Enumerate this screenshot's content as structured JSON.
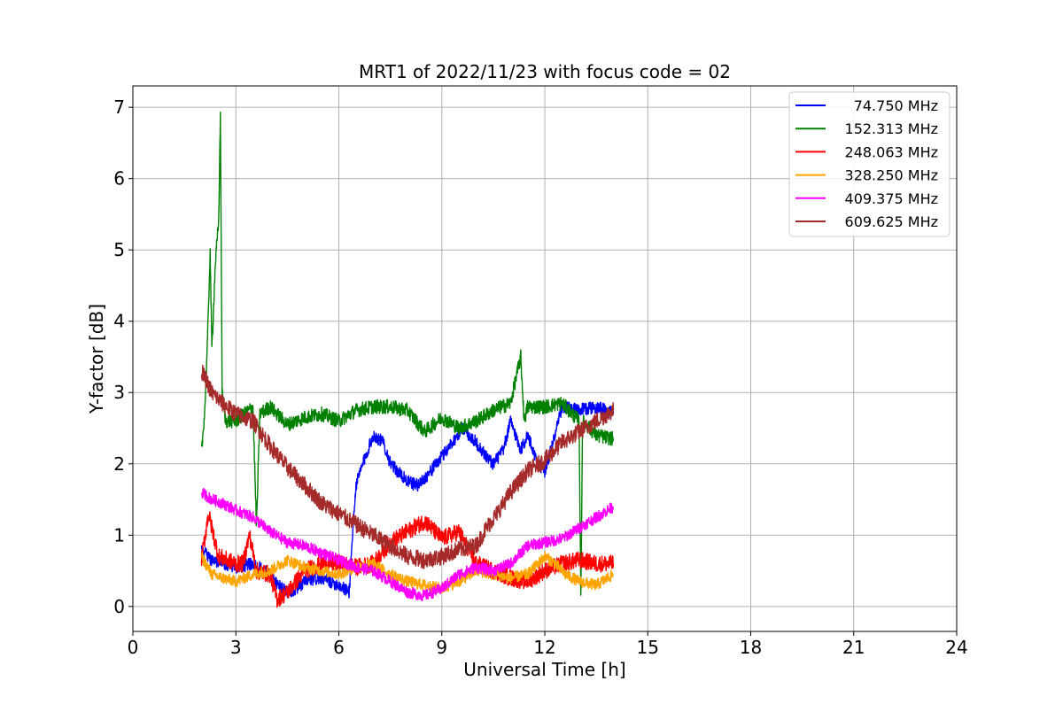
{
  "chart_data": {
    "type": "line",
    "title": "MRT1 of 2022/11/23 with focus code = 02",
    "xlabel": "Universal Time [h]",
    "ylabel": "Y-factor [dB]",
    "xlim": [
      0,
      24
    ],
    "ylim": [
      -0.35,
      7.3
    ],
    "xticks": [
      0,
      3,
      6,
      9,
      12,
      15,
      18,
      21,
      24
    ],
    "xtick_labels": [
      "0",
      "3",
      "6",
      "9",
      "12",
      "15",
      "18",
      "21",
      "24"
    ],
    "yticks": [
      0,
      1,
      2,
      3,
      4,
      5,
      6,
      7
    ],
    "ytick_labels": [
      "0",
      "1",
      "2",
      "3",
      "4",
      "5",
      "6",
      "7"
    ],
    "grid": true,
    "legend_position": "top-right",
    "series": [
      {
        "name": "74.750 MHz",
        "color": "#0000ff",
        "noise": 0.09,
        "x": [
          2.0,
          2.3,
          2.7,
          3.0,
          3.5,
          4.0,
          4.2,
          4.5,
          4.8,
          5.0,
          5.5,
          6.0,
          6.3,
          6.4,
          6.5,
          6.7,
          7.0,
          7.3,
          7.5,
          7.7,
          8.0,
          8.3,
          8.6,
          9.0,
          9.3,
          9.6,
          10.0,
          10.3,
          10.5,
          10.8,
          11.0,
          11.3,
          11.5,
          11.8,
          12.0,
          12.3,
          12.5,
          13.0,
          13.5,
          14.0
        ],
        "y": [
          0.8,
          0.65,
          0.6,
          0.55,
          0.6,
          0.45,
          0.3,
          0.2,
          0.25,
          0.35,
          0.4,
          0.3,
          0.2,
          1.0,
          1.7,
          2.0,
          2.4,
          2.3,
          2.0,
          1.9,
          1.75,
          1.7,
          1.85,
          2.1,
          2.3,
          2.5,
          2.3,
          2.1,
          2.0,
          2.2,
          2.6,
          2.2,
          2.4,
          2.0,
          1.9,
          2.4,
          2.8,
          2.75,
          2.8,
          2.7
        ]
      },
      {
        "name": "152.313 MHz",
        "color": "#008000",
        "noise": 0.1,
        "x": [
          2.0,
          2.1,
          2.2,
          2.25,
          2.3,
          2.4,
          2.5,
          2.55,
          2.6,
          2.7,
          3.0,
          3.5,
          3.6,
          3.7,
          4.0,
          4.5,
          5.0,
          5.5,
          6.0,
          6.5,
          7.0,
          7.5,
          8.0,
          8.5,
          9.0,
          9.5,
          10.0,
          10.5,
          11.0,
          11.3,
          11.4,
          11.5,
          12.0,
          12.5,
          13.0,
          13.05,
          13.1,
          13.5,
          14.0
        ],
        "y": [
          2.15,
          2.8,
          4.1,
          5.0,
          3.6,
          4.8,
          5.4,
          6.9,
          3.0,
          2.6,
          2.6,
          2.8,
          1.1,
          2.7,
          2.8,
          2.55,
          2.65,
          2.7,
          2.6,
          2.75,
          2.8,
          2.8,
          2.75,
          2.45,
          2.65,
          2.5,
          2.6,
          2.75,
          2.85,
          3.5,
          2.6,
          2.8,
          2.8,
          2.85,
          2.6,
          0.1,
          2.6,
          2.4,
          2.35
        ]
      },
      {
        "name": "248.063 MHz",
        "color": "#ff0000",
        "noise": 0.12,
        "x": [
          2.0,
          2.2,
          2.5,
          3.0,
          3.2,
          3.4,
          3.6,
          4.0,
          4.2,
          4.5,
          5.0,
          5.5,
          6.0,
          6.5,
          7.0,
          7.5,
          8.0,
          8.5,
          9.0,
          9.5,
          10.0,
          10.5,
          11.0,
          11.5,
          12.0,
          12.5,
          13.0,
          13.5,
          14.0
        ],
        "y": [
          0.65,
          1.3,
          0.7,
          0.6,
          0.6,
          1.0,
          0.5,
          0.45,
          0.1,
          0.2,
          0.5,
          0.6,
          0.6,
          0.55,
          0.6,
          0.9,
          1.05,
          1.2,
          0.95,
          1.05,
          0.6,
          0.5,
          0.4,
          0.35,
          0.5,
          0.6,
          0.65,
          0.6,
          0.6
        ]
      },
      {
        "name": "328.250 MHz",
        "color": "#ffa500",
        "noise": 0.08,
        "x": [
          2.0,
          2.3,
          2.6,
          3.0,
          3.5,
          4.0,
          4.5,
          5.0,
          5.5,
          6.0,
          6.5,
          7.0,
          7.5,
          8.0,
          8.5,
          9.0,
          9.5,
          10.0,
          10.5,
          11.0,
          11.5,
          12.0,
          12.3,
          12.6,
          13.0,
          13.5,
          14.0
        ],
        "y": [
          0.7,
          0.45,
          0.4,
          0.35,
          0.45,
          0.5,
          0.65,
          0.55,
          0.5,
          0.45,
          0.55,
          0.6,
          0.45,
          0.35,
          0.3,
          0.25,
          0.35,
          0.5,
          0.45,
          0.4,
          0.45,
          0.7,
          0.6,
          0.45,
          0.35,
          0.3,
          0.45
        ]
      },
      {
        "name": "409.375 MHz",
        "color": "#ff00ff",
        "noise": 0.08,
        "x": [
          2.0,
          2.3,
          2.6,
          3.0,
          3.5,
          4.0,
          4.5,
          5.0,
          5.5,
          6.0,
          6.5,
          7.0,
          7.5,
          8.0,
          8.5,
          9.0,
          9.5,
          10.0,
          10.5,
          11.0,
          11.5,
          12.0,
          12.5,
          13.0,
          13.5,
          14.0
        ],
        "y": [
          1.6,
          1.5,
          1.45,
          1.35,
          1.25,
          1.05,
          0.9,
          0.85,
          0.75,
          0.65,
          0.55,
          0.5,
          0.35,
          0.2,
          0.15,
          0.25,
          0.45,
          0.55,
          0.5,
          0.6,
          0.85,
          0.9,
          0.95,
          1.1,
          1.25,
          1.4
        ]
      },
      {
        "name": "609.625 MHz",
        "color": "#a52a2a",
        "noise": 0.12,
        "x": [
          2.0,
          2.3,
          2.6,
          3.0,
          3.5,
          4.0,
          4.5,
          5.0,
          5.5,
          6.0,
          6.5,
          7.0,
          7.5,
          8.0,
          8.5,
          9.0,
          9.5,
          10.0,
          10.3,
          10.6,
          11.0,
          11.5,
          12.0,
          12.5,
          13.0,
          13.5,
          14.0
        ],
        "y": [
          3.3,
          3.0,
          2.85,
          2.7,
          2.6,
          2.25,
          1.95,
          1.7,
          1.45,
          1.3,
          1.15,
          1.0,
          0.85,
          0.7,
          0.65,
          0.7,
          0.8,
          0.85,
          1.1,
          1.3,
          1.6,
          1.9,
          2.05,
          2.3,
          2.45,
          2.6,
          2.75
        ]
      }
    ]
  }
}
